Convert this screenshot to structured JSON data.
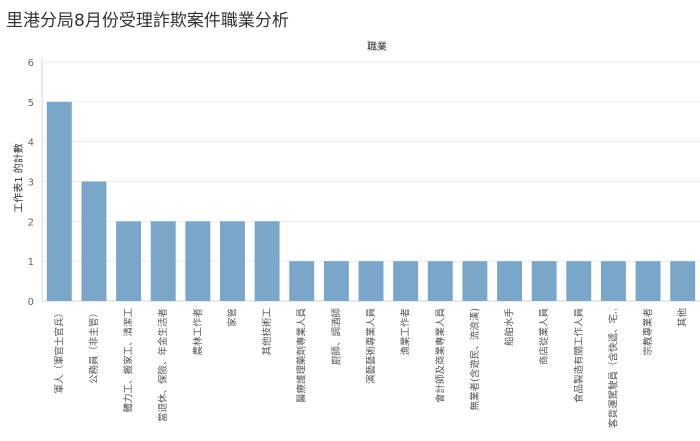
{
  "title": "里港分局8月份受理詐欺案件職業分析",
  "chart_data": {
    "type": "bar",
    "title": "里港分局8月份受理詐欺案件職業分析",
    "xlabel": "職業",
    "ylabel": "工作表1 的計數",
    "ylim": [
      0,
      6
    ],
    "yticks": [
      0,
      1,
      2,
      3,
      4,
      5,
      6
    ],
    "grid": true,
    "bar_color": "#7aa6c9",
    "categories": [
      "軍人（軍官士官兵）",
      "公務員（非主管）",
      "體力工、搬家工、清潔工",
      "當退休、保險、年金生活者",
      "農林工作者",
      "家管",
      "其他技術工",
      "醫療護理藥劑專業人員",
      "廚師、調酒師",
      "演藝藝術專業人員",
      "漁業工作者",
      "會計師及商業專業人員",
      "無業者(含遊民、流浪漢)",
      "船舶水手",
      "商店從業人員",
      "食品製造有關工作人員",
      "客貨運駕駛員（含快遞、宅..",
      "宗教專業者",
      "其他"
    ],
    "values": [
      5,
      3,
      2,
      2,
      2,
      2,
      2,
      1,
      1,
      1,
      1,
      1,
      1,
      1,
      1,
      1,
      1,
      1,
      1
    ]
  }
}
